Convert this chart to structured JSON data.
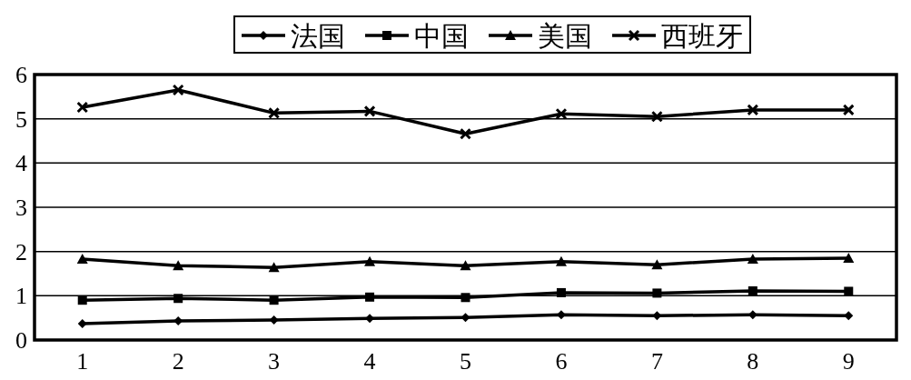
{
  "chart_data": {
    "type": "line",
    "categories": [
      "1",
      "2",
      "3",
      "4",
      "5",
      "6",
      "7",
      "8",
      "9"
    ],
    "series": [
      {
        "name": "法国",
        "color": "#000000",
        "marker": "diamond",
        "values": [
          0.37,
          0.43,
          0.45,
          0.49,
          0.51,
          0.57,
          0.55,
          0.57,
          0.55
        ]
      },
      {
        "name": "中国",
        "color": "#000000",
        "marker": "square",
        "values": [
          0.9,
          0.94,
          0.9,
          0.97,
          0.96,
          1.07,
          1.06,
          1.11,
          1.1
        ]
      },
      {
        "name": "美国",
        "color": "#000000",
        "marker": "triangle",
        "values": [
          1.83,
          1.68,
          1.64,
          1.77,
          1.68,
          1.77,
          1.7,
          1.83,
          1.85
        ]
      },
      {
        "name": "西班牙",
        "color": "#000000",
        "marker": "cross",
        "values": [
          5.26,
          5.65,
          5.13,
          5.17,
          4.66,
          5.11,
          5.05,
          5.2,
          5.2
        ]
      }
    ],
    "ylim": [
      0,
      6
    ],
    "yticks": [
      0,
      1,
      2,
      3,
      4,
      5,
      6
    ],
    "grid": "y",
    "legend": "top"
  }
}
